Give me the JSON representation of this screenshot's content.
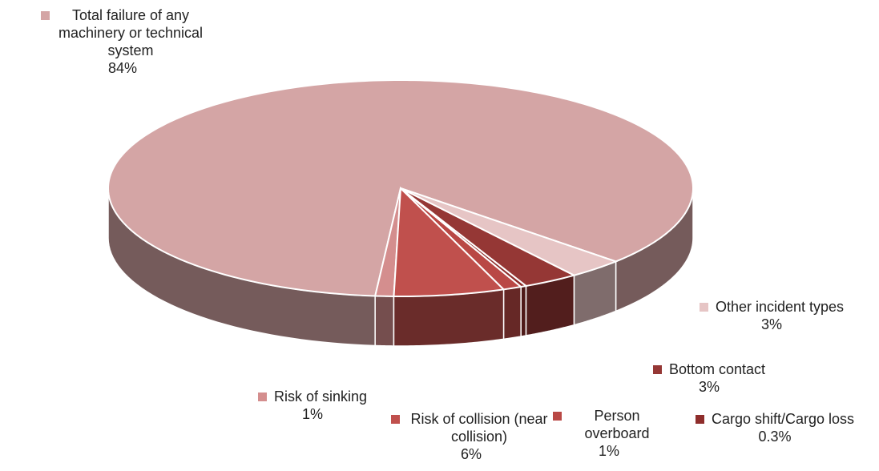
{
  "chart_data": {
    "type": "pie3d",
    "categories": [
      "Total failure of any machinery or technical system",
      "Risk of sinking",
      "Risk of collision (near collision)",
      "Person overboard",
      "Cargo shift/Cargo loss",
      "Bottom contact",
      "Other incident types"
    ],
    "values": [
      84,
      1,
      6,
      1,
      0.3,
      3,
      3
    ],
    "value_labels": [
      "84%",
      "1%",
      "6%",
      "1%",
      "0.3%",
      "3%",
      "3%"
    ],
    "colors": [
      "#d4a5a5",
      "#d48e8e",
      "#c0504d",
      "#b94845",
      "#8e2d2b",
      "#953735",
      "#e6c5c5"
    ]
  }
}
